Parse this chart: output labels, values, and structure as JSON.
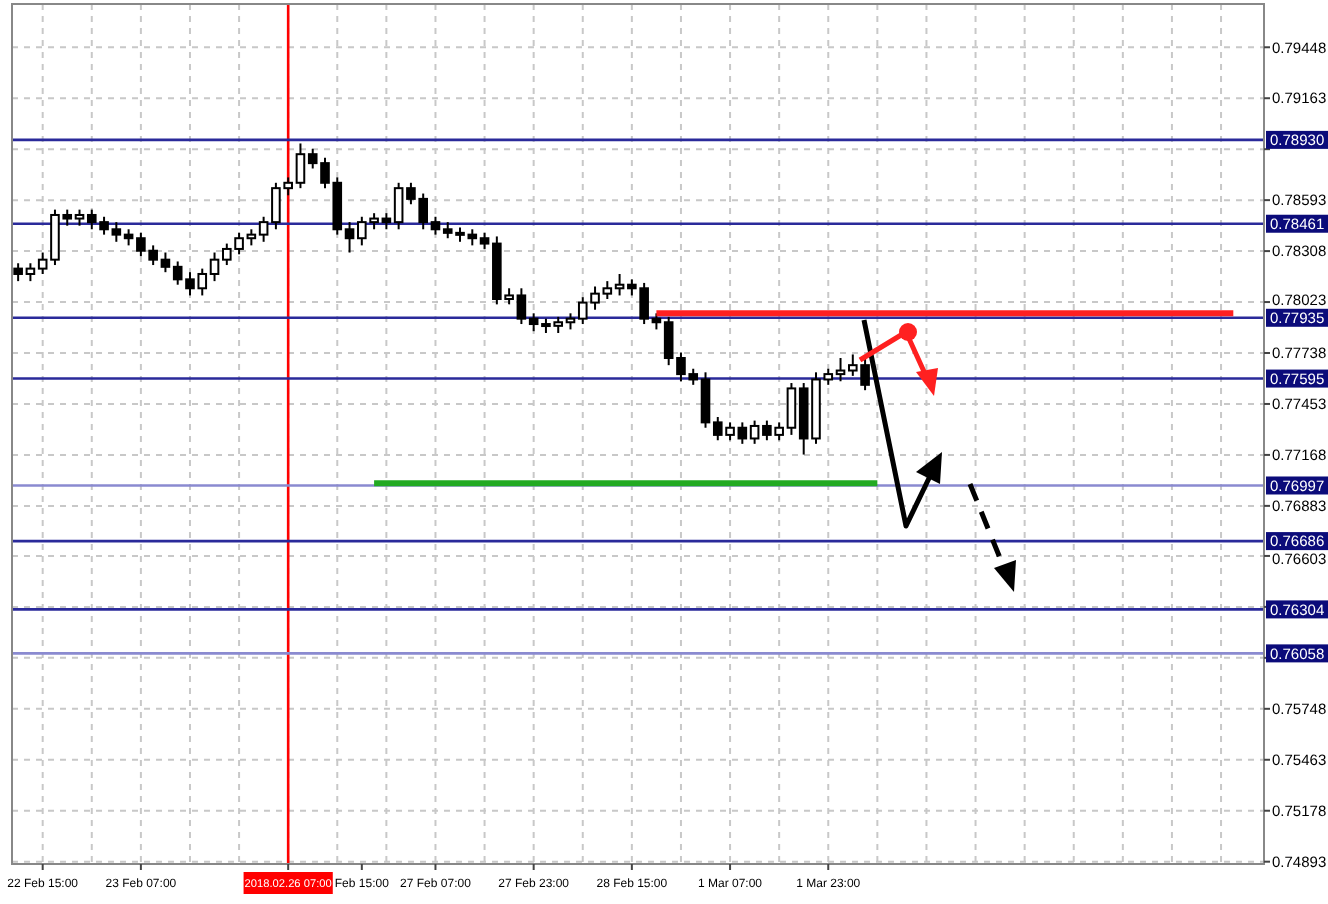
{
  "chart_data": {
    "type": "candlestick",
    "color": "#000000",
    "categories": [
      null,
      null,
      "22 Feb 15:00",
      null,
      null,
      null,
      null,
      null,
      null,
      null,
      "23 Feb 07:00",
      null,
      null,
      null,
      null,
      null,
      null,
      null,
      null,
      null,
      null,
      null,
      "2018.02.26 07:00",
      null,
      null,
      null,
      null,
      null,
      "Feb 15:00",
      null,
      null,
      null,
      null,
      null,
      "27 Feb 07:00",
      null,
      null,
      null,
      null,
      null,
      null,
      null,
      "27 Feb 23:00",
      null,
      null,
      null,
      null,
      null,
      null,
      null,
      "28 Feb 15:00",
      null,
      null,
      null,
      null,
      null,
      null,
      null,
      "1 Mar 07:00",
      null,
      null,
      null,
      null,
      null,
      null,
      null,
      "1 Mar 23:00",
      null,
      null,
      null,
      null,
      null,
      null,
      null,
      null,
      null,
      null,
      null,
      null,
      null,
      null,
      null,
      null,
      null,
      null,
      null,
      null,
      null,
      null,
      null,
      null,
      null,
      null,
      null,
      null,
      null,
      null,
      null,
      null,
      null,
      null,
      null
    ],
    "ohlc": [
      [
        0.7821,
        0.7824,
        0.7814,
        0.7818
      ],
      [
        0.7818,
        0.7824,
        0.7814,
        0.7821
      ],
      [
        0.7821,
        0.783,
        0.7818,
        0.7826
      ],
      [
        0.7826,
        0.7854,
        0.7823,
        0.7851
      ],
      [
        0.7851,
        0.7854,
        0.7845,
        0.7849
      ],
      [
        0.7849,
        0.7854,
        0.7845,
        0.7851
      ],
      [
        0.7851,
        0.7854,
        0.7843,
        0.7847
      ],
      [
        0.7847,
        0.785,
        0.784,
        0.7843
      ],
      [
        0.7843,
        0.7847,
        0.7836,
        0.784
      ],
      [
        0.784,
        0.7843,
        0.7834,
        0.7838
      ],
      [
        0.7838,
        0.7841,
        0.7828,
        0.7831
      ],
      [
        0.7831,
        0.7834,
        0.7823,
        0.7826
      ],
      [
        0.7826,
        0.783,
        0.7819,
        0.7822
      ],
      [
        0.7822,
        0.7825,
        0.7812,
        0.7815
      ],
      [
        0.7815,
        0.7819,
        0.7806,
        0.781
      ],
      [
        0.781,
        0.7821,
        0.7806,
        0.7818
      ],
      [
        0.7818,
        0.783,
        0.7814,
        0.7826
      ],
      [
        0.7826,
        0.7835,
        0.7823,
        0.7832
      ],
      [
        0.7832,
        0.7841,
        0.7829,
        0.7838
      ],
      [
        0.7838,
        0.7843,
        0.7834,
        0.784
      ],
      [
        0.784,
        0.785,
        0.7836,
        0.7847
      ],
      [
        0.7847,
        0.7869,
        0.7843,
        0.7866
      ],
      [
        0.7866,
        0.7872,
        0.7862,
        0.7869
      ],
      [
        0.7869,
        0.7891,
        0.7866,
        0.7885
      ],
      [
        0.7885,
        0.7888,
        0.7877,
        0.788
      ],
      [
        0.788,
        0.7883,
        0.7866,
        0.7869
      ],
      [
        0.7869,
        0.7872,
        0.784,
        0.7843
      ],
      [
        0.7843,
        0.7847,
        0.783,
        0.7838
      ],
      [
        0.7838,
        0.785,
        0.7834,
        0.7847
      ],
      [
        0.7847,
        0.7852,
        0.7843,
        0.7849
      ],
      [
        0.7849,
        0.7852,
        0.7843,
        0.7847
      ],
      [
        0.7847,
        0.7869,
        0.7843,
        0.7866
      ],
      [
        0.7866,
        0.7869,
        0.7857,
        0.786
      ],
      [
        0.786,
        0.7863,
        0.7843,
        0.7847
      ],
      [
        0.7847,
        0.785,
        0.784,
        0.7843
      ],
      [
        0.7843,
        0.7847,
        0.7838,
        0.7841
      ],
      [
        0.7841,
        0.7844,
        0.7836,
        0.784
      ],
      [
        0.784,
        0.7843,
        0.7834,
        0.7838
      ],
      [
        0.7838,
        0.7841,
        0.7832,
        0.7835
      ],
      [
        0.7835,
        0.7839,
        0.7801,
        0.7804
      ],
      [
        0.7804,
        0.781,
        0.7801,
        0.7806
      ],
      [
        0.7806,
        0.781,
        0.779,
        0.7793
      ],
      [
        0.7793,
        0.7796,
        0.7786,
        0.779
      ],
      [
        0.779,
        0.7793,
        0.7785,
        0.7789
      ],
      [
        0.7789,
        0.7794,
        0.7785,
        0.7791
      ],
      [
        0.7791,
        0.7796,
        0.7787,
        0.7793
      ],
      [
        0.7793,
        0.7805,
        0.779,
        0.7802
      ],
      [
        0.7802,
        0.7811,
        0.7798,
        0.7807
      ],
      [
        0.7807,
        0.7814,
        0.7804,
        0.781
      ],
      [
        0.781,
        0.7818,
        0.7806,
        0.7812
      ],
      [
        0.7812,
        0.7815,
        0.7806,
        0.781
      ],
      [
        0.781,
        0.7813,
        0.779,
        0.7793
      ],
      [
        0.7793,
        0.7796,
        0.7787,
        0.7791
      ],
      [
        0.7791,
        0.7794,
        0.7767,
        0.7771
      ],
      [
        0.7771,
        0.7774,
        0.7758,
        0.7762
      ],
      [
        0.7762,
        0.7765,
        0.7756,
        0.7759
      ],
      [
        0.7759,
        0.7763,
        0.7732,
        0.7735
      ],
      [
        0.7735,
        0.7738,
        0.7725,
        0.7728
      ],
      [
        0.7728,
        0.7735,
        0.7725,
        0.7732
      ],
      [
        0.7732,
        0.7735,
        0.7723,
        0.7726
      ],
      [
        0.7726,
        0.7736,
        0.7723,
        0.7733
      ],
      [
        0.7733,
        0.7736,
        0.7725,
        0.7728
      ],
      [
        0.7728,
        0.7735,
        0.7725,
        0.7732
      ],
      [
        0.7732,
        0.7757,
        0.7728,
        0.7754
      ],
      [
        0.7754,
        0.7757,
        0.7717,
        0.7726
      ],
      [
        0.7726,
        0.7763,
        0.7723,
        0.7759
      ],
      [
        0.7759,
        0.7765,
        0.7756,
        0.7762
      ],
      [
        0.7762,
        0.7771,
        0.7758,
        0.7764
      ],
      [
        0.7764,
        0.7773,
        0.7761,
        0.7767
      ],
      [
        0.7767,
        0.7771,
        0.7753,
        0.7756
      ],
      null,
      null,
      null,
      null,
      null,
      null,
      null,
      null,
      null,
      null,
      null,
      null,
      null,
      null,
      null,
      null,
      null,
      null,
      null,
      null,
      null,
      null,
      null,
      null,
      null,
      null,
      null,
      null,
      null,
      null,
      null,
      null
    ],
    "series": [
      {
        "type": "line",
        "color": "#ff2020",
        "values": [
          null,
          null,
          null,
          null,
          null,
          null,
          null,
          null,
          null,
          null,
          null,
          null,
          null,
          null,
          null,
          null,
          null,
          null,
          null,
          null,
          null,
          null,
          null,
          null,
          null,
          null,
          null,
          null,
          null,
          null,
          null,
          null,
          null,
          null,
          null,
          null,
          null,
          null,
          null,
          null,
          null,
          null,
          null,
          null,
          null,
          null,
          null,
          null,
          null,
          null,
          null,
          null,
          0.7796,
          0.7796,
          0.7796,
          0.7796,
          0.7796,
          0.7796,
          0.7796,
          0.7796,
          0.7796,
          0.7796,
          0.7796,
          0.7796,
          0.7796,
          0.7796,
          0.7796,
          0.7796,
          0.7796,
          0.7796,
          0.7796,
          0.7796,
          0.7796,
          0.7796,
          0.7796,
          0.7796,
          0.7796,
          0.7796,
          0.7796,
          0.7796,
          0.7796,
          0.7796,
          0.7796,
          0.7796,
          0.7796,
          0.7796,
          0.7796,
          0.7796,
          0.7796,
          0.7796,
          0.7796,
          0.7796,
          0.7796,
          0.7796,
          0.7796,
          0.7796,
          0.7796,
          0.7796,
          0.7796,
          0.7796,
          null,
          null
        ]
      },
      {
        "type": "line",
        "color": "#22aa22",
        "values": [
          null,
          null,
          null,
          null,
          null,
          null,
          null,
          null,
          null,
          null,
          null,
          null,
          null,
          null,
          null,
          null,
          null,
          null,
          null,
          null,
          null,
          null,
          null,
          null,
          null,
          null,
          null,
          null,
          null,
          0.7701,
          0.7701,
          0.7701,
          0.7701,
          0.7701,
          0.7701,
          0.7701,
          0.7701,
          0.7701,
          0.7701,
          0.7701,
          0.7701,
          0.7701,
          0.7701,
          0.7701,
          0.7701,
          0.7701,
          0.7701,
          0.7701,
          0.7701,
          0.7701,
          0.7701,
          0.7701,
          0.7701,
          0.7701,
          0.7701,
          0.7701,
          0.7701,
          0.7701,
          0.7701,
          0.7701,
          0.7701,
          0.7701,
          0.7701,
          0.7701,
          0.7701,
          0.7701,
          0.7701,
          0.7701,
          0.7701,
          0.7701,
          0.7701,
          null,
          null,
          null,
          null,
          null,
          null,
          null,
          null,
          null,
          null,
          null,
          null,
          null,
          null,
          null,
          null,
          null,
          null,
          null,
          null,
          null,
          null,
          null,
          null,
          null,
          null,
          null,
          null,
          null,
          null,
          null
        ]
      }
    ],
    "ylim": [
      0.7488,
      0.7969
    ],
    "yticks": [
      0.79448,
      0.79163,
      {
        "value": 0.78878,
        "label": null
      },
      0.78593,
      0.78308,
      0.78023,
      0.77738,
      0.77453,
      0.77168,
      0.76883,
      {
        "value": 0.76603,
        "label": "0.76603"
      },
      {
        "value": 0.76318,
        "label": null
      },
      {
        "value": 0.76033,
        "label": null
      },
      0.75748,
      0.75463,
      0.75178,
      0.74893
    ],
    "grid": true,
    "ref_lines": [
      {
        "axis": "x",
        "value": "2018.02.26 07:00",
        "color": "#ff0000"
      },
      {
        "axis": "y",
        "value": 0.7893,
        "label": "0.78930",
        "color": "#2a2a9a"
      },
      {
        "axis": "y",
        "value": 0.78461,
        "label": "0.78461",
        "color": "#2a2a9a"
      },
      {
        "axis": "y",
        "value": 0.77935,
        "label": "0.77935",
        "color": "#2a2a9a"
      },
      {
        "axis": "y",
        "value": 0.77595,
        "label": "0.77595",
        "color": "#2a2a9a"
      },
      {
        "axis": "y",
        "value": 0.76997,
        "label": "0.76997",
        "color": "#8a8ad0"
      },
      {
        "axis": "y",
        "value": 0.76686,
        "label": "0.76686",
        "color": "#2a2a9a"
      },
      {
        "axis": "y",
        "value": 0.76304,
        "label": "0.76304",
        "color": "#2a2a9a"
      },
      {
        "axis": "y",
        "value": 0.76058,
        "label": "0.76058",
        "color": "#8a8ad0"
      }
    ]
  }
}
